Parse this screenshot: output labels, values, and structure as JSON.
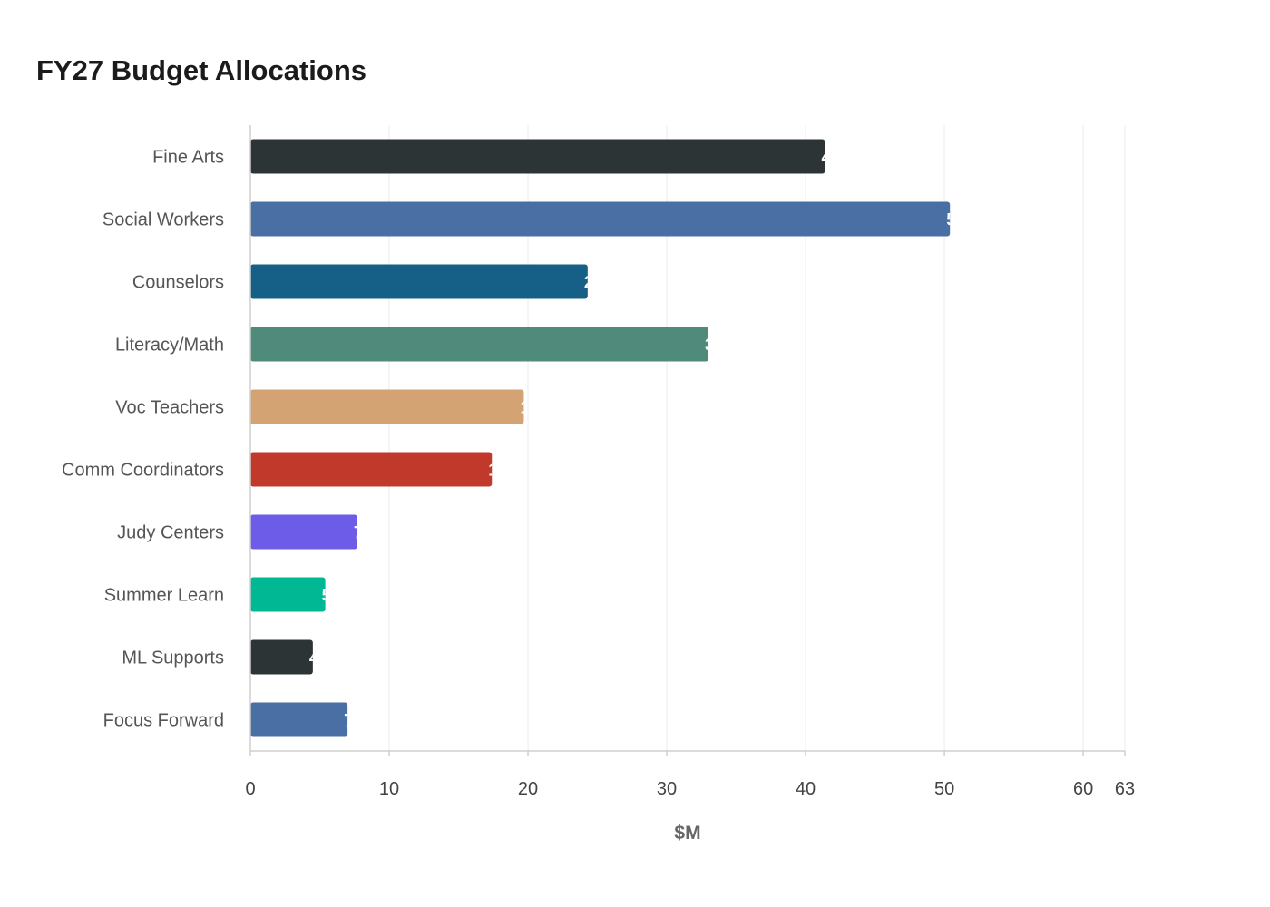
{
  "chart_data": {
    "type": "bar",
    "orientation": "horizontal",
    "title": "FY27 Budget Allocations",
    "xlabel": "$M",
    "ylabel": "",
    "categories": [
      "Fine Arts",
      "Social Workers",
      "Counselors",
      "Literacy/Math",
      "Voc Teachers",
      "Comm Coordinators",
      "Judy Centers",
      "Summer Learn",
      "ML Supports",
      "Focus Forward"
    ],
    "values": [
      41.4,
      50.4,
      24.3,
      33.0,
      19.7,
      17.4,
      7.7,
      5.4,
      4.5,
      7.0
    ],
    "colors": [
      "#2d3436",
      "#4a6fa5",
      "#166088",
      "#4f8a7b",
      "#d4a373",
      "#c0392b",
      "#6c5ce7",
      "#00b894",
      "#2d3436",
      "#4a6fa5"
    ],
    "xlim": [
      0,
      63
    ],
    "xticks": [
      0,
      10,
      20,
      30,
      40,
      50,
      60,
      63
    ],
    "grid": true,
    "legend": "none"
  }
}
